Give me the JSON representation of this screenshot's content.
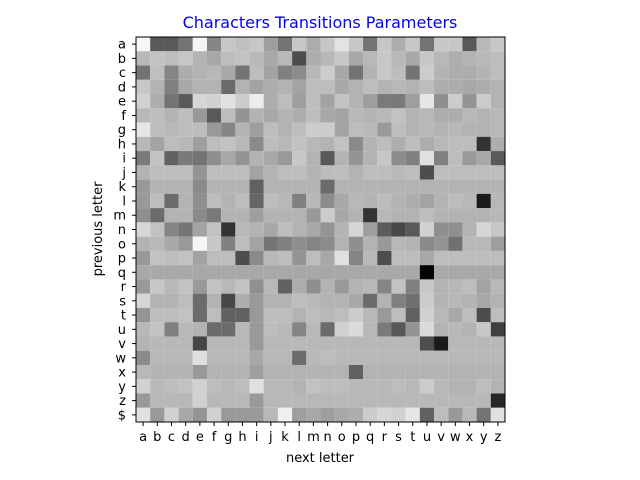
{
  "chart_data": {
    "type": "heatmap",
    "title": "Characters Transitions Parameters",
    "xlabel": "next letter",
    "ylabel": "previous letter",
    "x_labels": [
      "a",
      "b",
      "c",
      "d",
      "e",
      "f",
      "g",
      "h",
      "i",
      "j",
      "k",
      "l",
      "m",
      "n",
      "o",
      "p",
      "q",
      "r",
      "s",
      "t",
      "u",
      "v",
      "w",
      "x",
      "y",
      "z"
    ],
    "y_labels": [
      "a",
      "b",
      "c",
      "d",
      "e",
      "f",
      "g",
      "h",
      "i",
      "j",
      "k",
      "l",
      "m",
      "n",
      "o",
      "p",
      "q",
      "r",
      "s",
      "t",
      "u",
      "v",
      "w",
      "x",
      "y",
      "z",
      "$"
    ],
    "color_scale": "grayscale",
    "grid": false,
    "values": [
      [
        0.97,
        0.35,
        0.35,
        0.45,
        0.96,
        0.52,
        0.78,
        0.75,
        0.78,
        0.62,
        0.45,
        0.78,
        0.68,
        0.78,
        0.89,
        0.78,
        0.45,
        0.78,
        0.68,
        0.78,
        0.45,
        0.78,
        0.78,
        0.35,
        0.72,
        0.78
      ],
      [
        0.72,
        0.76,
        0.74,
        0.78,
        0.7,
        0.66,
        0.74,
        0.76,
        0.72,
        0.66,
        0.72,
        0.3,
        0.68,
        0.72,
        0.78,
        0.66,
        0.72,
        0.78,
        0.72,
        0.66,
        0.78,
        0.72,
        0.68,
        0.7,
        0.72,
        0.74
      ],
      [
        0.45,
        0.75,
        0.52,
        0.68,
        0.7,
        0.72,
        0.66,
        0.45,
        0.74,
        0.64,
        0.5,
        0.55,
        0.72,
        0.8,
        0.66,
        0.45,
        0.7,
        0.78,
        0.74,
        0.45,
        0.8,
        0.7,
        0.68,
        0.68,
        0.7,
        0.74
      ],
      [
        0.78,
        0.7,
        0.5,
        0.66,
        0.7,
        0.7,
        0.42,
        0.7,
        0.64,
        0.68,
        0.7,
        0.64,
        0.74,
        0.74,
        0.66,
        0.7,
        0.74,
        0.7,
        0.72,
        0.7,
        0.74,
        0.68,
        0.68,
        0.66,
        0.68,
        0.7
      ],
      [
        0.82,
        0.68,
        0.45,
        0.35,
        0.84,
        0.82,
        0.88,
        0.8,
        0.93,
        0.68,
        0.74,
        0.62,
        0.74,
        0.64,
        0.76,
        0.7,
        0.62,
        0.48,
        0.48,
        0.62,
        0.9,
        0.56,
        0.8,
        0.58,
        0.8,
        0.7
      ],
      [
        0.72,
        0.74,
        0.7,
        0.74,
        0.6,
        0.35,
        0.74,
        0.58,
        0.7,
        0.66,
        0.7,
        0.68,
        0.74,
        0.66,
        0.64,
        0.72,
        0.7,
        0.72,
        0.76,
        0.7,
        0.72,
        0.68,
        0.68,
        0.72,
        0.7,
        0.72
      ],
      [
        0.9,
        0.74,
        0.72,
        0.74,
        0.74,
        0.6,
        0.52,
        0.7,
        0.62,
        0.74,
        0.7,
        0.74,
        0.8,
        0.8,
        0.64,
        0.74,
        0.72,
        0.6,
        0.74,
        0.7,
        0.72,
        0.7,
        0.72,
        0.7,
        0.7,
        0.72
      ],
      [
        0.72,
        0.64,
        0.74,
        0.72,
        0.62,
        0.74,
        0.76,
        0.72,
        0.54,
        0.74,
        0.72,
        0.76,
        0.72,
        0.7,
        0.76,
        0.54,
        0.7,
        0.74,
        0.68,
        0.74,
        0.68,
        0.72,
        0.74,
        0.74,
        0.2,
        0.68
      ],
      [
        0.48,
        0.76,
        0.38,
        0.48,
        0.45,
        0.56,
        0.66,
        0.58,
        0.7,
        0.66,
        0.6,
        0.78,
        0.7,
        0.35,
        0.7,
        0.58,
        0.7,
        0.78,
        0.55,
        0.5,
        0.88,
        0.5,
        0.74,
        0.6,
        0.66,
        0.35
      ],
      [
        0.7,
        0.74,
        0.74,
        0.74,
        0.58,
        0.74,
        0.74,
        0.74,
        0.64,
        0.7,
        0.74,
        0.74,
        0.7,
        0.74,
        0.74,
        0.7,
        0.74,
        0.74,
        0.72,
        0.74,
        0.3,
        0.74,
        0.74,
        0.74,
        0.74,
        0.74
      ],
      [
        0.6,
        0.7,
        0.7,
        0.7,
        0.54,
        0.7,
        0.7,
        0.7,
        0.38,
        0.7,
        0.7,
        0.7,
        0.7,
        0.42,
        0.7,
        0.7,
        0.7,
        0.7,
        0.7,
        0.7,
        0.7,
        0.7,
        0.7,
        0.7,
        0.7,
        0.7
      ],
      [
        0.6,
        0.74,
        0.42,
        0.7,
        0.56,
        0.74,
        0.7,
        0.74,
        0.4,
        0.74,
        0.72,
        0.5,
        0.72,
        0.55,
        0.66,
        0.72,
        0.7,
        0.74,
        0.7,
        0.68,
        0.64,
        0.7,
        0.74,
        0.72,
        0.1,
        0.72
      ],
      [
        0.56,
        0.42,
        0.7,
        0.7,
        0.54,
        0.48,
        0.7,
        0.7,
        0.62,
        0.7,
        0.7,
        0.7,
        0.6,
        0.8,
        0.66,
        0.7,
        0.2,
        0.72,
        0.7,
        0.7,
        0.74,
        0.7,
        0.7,
        0.7,
        0.7,
        0.72
      ],
      [
        0.84,
        0.76,
        0.52,
        0.46,
        0.64,
        0.76,
        0.2,
        0.72,
        0.7,
        0.66,
        0.74,
        0.7,
        0.66,
        0.58,
        0.7,
        0.84,
        0.62,
        0.36,
        0.28,
        0.35,
        0.82,
        0.56,
        0.56,
        0.7,
        0.84,
        0.78
      ],
      [
        0.7,
        0.72,
        0.66,
        0.6,
        0.96,
        0.78,
        0.5,
        0.74,
        0.64,
        0.46,
        0.5,
        0.56,
        0.52,
        0.55,
        0.7,
        0.56,
        0.7,
        0.6,
        0.72,
        0.7,
        0.54,
        0.58,
        0.44,
        0.72,
        0.72,
        0.62
      ],
      [
        0.6,
        0.76,
        0.74,
        0.76,
        0.64,
        0.74,
        0.74,
        0.3,
        0.54,
        0.72,
        0.74,
        0.58,
        0.74,
        0.66,
        0.88,
        0.52,
        0.72,
        0.3,
        0.74,
        0.74,
        0.66,
        0.74,
        0.74,
        0.74,
        0.74,
        0.74
      ],
      [
        0.66,
        0.66,
        0.66,
        0.66,
        0.66,
        0.66,
        0.66,
        0.66,
        0.66,
        0.66,
        0.66,
        0.66,
        0.66,
        0.66,
        0.66,
        0.66,
        0.66,
        0.66,
        0.66,
        0.66,
        0.02,
        0.66,
        0.66,
        0.66,
        0.66,
        0.66
      ],
      [
        0.6,
        0.78,
        0.72,
        0.76,
        0.6,
        0.76,
        0.72,
        0.76,
        0.56,
        0.72,
        0.38,
        0.68,
        0.56,
        0.7,
        0.6,
        0.7,
        0.72,
        0.52,
        0.76,
        0.5,
        0.78,
        0.7,
        0.72,
        0.74,
        0.64,
        0.72
      ],
      [
        0.84,
        0.7,
        0.7,
        0.74,
        0.42,
        0.7,
        0.28,
        0.68,
        0.6,
        0.7,
        0.7,
        0.74,
        0.72,
        0.7,
        0.7,
        0.66,
        0.42,
        0.7,
        0.5,
        0.44,
        0.8,
        0.7,
        0.72,
        0.7,
        0.66,
        0.7
      ],
      [
        0.58,
        0.74,
        0.74,
        0.76,
        0.42,
        0.74,
        0.38,
        0.38,
        0.6,
        0.74,
        0.74,
        0.7,
        0.74,
        0.72,
        0.74,
        0.8,
        0.72,
        0.6,
        0.74,
        0.38,
        0.82,
        0.72,
        0.66,
        0.74,
        0.3,
        0.74
      ],
      [
        0.72,
        0.76,
        0.5,
        0.72,
        0.7,
        0.42,
        0.42,
        0.72,
        0.6,
        0.74,
        0.72,
        0.52,
        0.72,
        0.42,
        0.82,
        0.86,
        0.72,
        0.48,
        0.34,
        0.58,
        0.86,
        0.7,
        0.72,
        0.7,
        0.78,
        0.25
      ],
      [
        0.7,
        0.72,
        0.72,
        0.72,
        0.28,
        0.72,
        0.72,
        0.72,
        0.6,
        0.72,
        0.72,
        0.72,
        0.72,
        0.72,
        0.72,
        0.72,
        0.72,
        0.72,
        0.72,
        0.72,
        0.3,
        0.1,
        0.72,
        0.72,
        0.72,
        0.72
      ],
      [
        0.54,
        0.72,
        0.72,
        0.72,
        0.88,
        0.72,
        0.72,
        0.72,
        0.66,
        0.72,
        0.72,
        0.42,
        0.72,
        0.74,
        0.72,
        0.72,
        0.72,
        0.72,
        0.72,
        0.72,
        0.72,
        0.72,
        0.72,
        0.72,
        0.72,
        0.72
      ],
      [
        0.72,
        0.7,
        0.7,
        0.7,
        0.6,
        0.7,
        0.7,
        0.7,
        0.62,
        0.7,
        0.7,
        0.7,
        0.7,
        0.7,
        0.7,
        0.38,
        0.7,
        0.7,
        0.7,
        0.7,
        0.7,
        0.7,
        0.7,
        0.7,
        0.7,
        0.7
      ],
      [
        0.82,
        0.72,
        0.74,
        0.76,
        0.82,
        0.74,
        0.72,
        0.74,
        0.88,
        0.72,
        0.72,
        0.7,
        0.76,
        0.74,
        0.74,
        0.72,
        0.72,
        0.72,
        0.74,
        0.72,
        0.8,
        0.72,
        0.7,
        0.7,
        0.74,
        0.7
      ],
      [
        0.6,
        0.72,
        0.72,
        0.72,
        0.82,
        0.72,
        0.72,
        0.72,
        0.6,
        0.72,
        0.72,
        0.72,
        0.72,
        0.72,
        0.72,
        0.72,
        0.72,
        0.72,
        0.72,
        0.72,
        0.72,
        0.72,
        0.72,
        0.72,
        0.72,
        0.15
      ],
      [
        0.88,
        0.6,
        0.82,
        0.66,
        0.58,
        0.82,
        0.6,
        0.6,
        0.6,
        0.72,
        0.94,
        0.62,
        0.66,
        0.62,
        0.66,
        0.68,
        0.8,
        0.84,
        0.82,
        0.9,
        0.38,
        0.74,
        0.6,
        0.72,
        0.45,
        0.88
      ]
    ]
  }
}
